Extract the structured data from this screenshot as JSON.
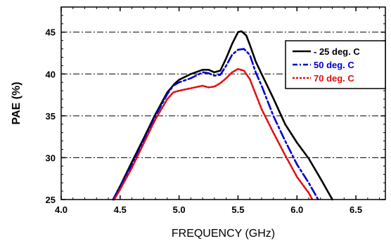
{
  "chart_data": {
    "type": "line",
    "title": "",
    "xlabel": "FREQUENCY (GHz)",
    "ylabel": "PAE (%)",
    "xlim": [
      4.0,
      6.75
    ],
    "ylim": [
      25,
      48
    ],
    "x_ticks": [
      "4.0",
      "4.5",
      "5.0",
      "5.5",
      "6.0",
      "6.5"
    ],
    "y_ticks": [
      "25",
      "30",
      "35",
      "40",
      "45"
    ],
    "grid": "horizontal dash-dot at y ticks",
    "legend_position": "top-right",
    "series": [
      {
        "name": "- 25 deg. C",
        "color": "#000000",
        "dash": "solid",
        "points": [
          [
            4.44,
            25.0
          ],
          [
            4.5,
            26.6
          ],
          [
            4.6,
            29.5
          ],
          [
            4.7,
            32.3
          ],
          [
            4.8,
            35.2
          ],
          [
            4.9,
            37.8
          ],
          [
            4.96,
            38.8
          ],
          [
            5.0,
            39.3
          ],
          [
            5.1,
            40.0
          ],
          [
            5.2,
            40.5
          ],
          [
            5.25,
            40.5
          ],
          [
            5.3,
            40.2
          ],
          [
            5.35,
            40.4
          ],
          [
            5.4,
            41.9
          ],
          [
            5.45,
            43.6
          ],
          [
            5.5,
            45.0
          ],
          [
            5.53,
            45.1
          ],
          [
            5.57,
            44.6
          ],
          [
            5.6,
            43.5
          ],
          [
            5.65,
            41.5
          ],
          [
            5.7,
            40.0
          ],
          [
            5.8,
            37.1
          ],
          [
            5.9,
            34.0
          ],
          [
            6.0,
            31.8
          ],
          [
            6.1,
            29.9
          ],
          [
            6.2,
            27.5
          ],
          [
            6.3,
            25.0
          ]
        ]
      },
      {
        "name": "50 deg. C",
        "color": "#0000cc",
        "dash": "dash-dot",
        "points": [
          [
            4.44,
            25.0
          ],
          [
            4.5,
            26.5
          ],
          [
            4.6,
            29.2
          ],
          [
            4.7,
            32.0
          ],
          [
            4.8,
            35.0
          ],
          [
            4.9,
            37.6
          ],
          [
            4.95,
            38.6
          ],
          [
            5.0,
            39.0
          ],
          [
            5.1,
            39.5
          ],
          [
            5.2,
            40.2
          ],
          [
            5.25,
            40.1
          ],
          [
            5.3,
            39.8
          ],
          [
            5.35,
            39.9
          ],
          [
            5.4,
            41.0
          ],
          [
            5.45,
            42.3
          ],
          [
            5.5,
            42.9
          ],
          [
            5.55,
            43.0
          ],
          [
            5.6,
            42.3
          ],
          [
            5.65,
            40.2
          ],
          [
            5.7,
            38.6
          ],
          [
            5.8,
            35.0
          ],
          [
            5.9,
            32.0
          ],
          [
            6.0,
            29.2
          ],
          [
            6.1,
            27.0
          ],
          [
            6.18,
            25.0
          ]
        ]
      },
      {
        "name": "70 deg. C",
        "color": "#e01010",
        "dash": "dotted",
        "points": [
          [
            4.45,
            25.0
          ],
          [
            4.5,
            26.2
          ],
          [
            4.6,
            28.8
          ],
          [
            4.7,
            31.7
          ],
          [
            4.8,
            34.6
          ],
          [
            4.9,
            37.0
          ],
          [
            4.95,
            37.8
          ],
          [
            5.0,
            38.0
          ],
          [
            5.1,
            38.3
          ],
          [
            5.2,
            38.6
          ],
          [
            5.25,
            38.4
          ],
          [
            5.3,
            38.5
          ],
          [
            5.35,
            38.9
          ],
          [
            5.4,
            39.5
          ],
          [
            5.45,
            40.2
          ],
          [
            5.5,
            40.6
          ],
          [
            5.55,
            40.4
          ],
          [
            5.6,
            39.4
          ],
          [
            5.65,
            37.6
          ],
          [
            5.7,
            35.8
          ],
          [
            5.8,
            33.0
          ],
          [
            5.9,
            30.3
          ],
          [
            6.0,
            27.7
          ],
          [
            6.1,
            25.8
          ],
          [
            6.13,
            25.0
          ]
        ]
      }
    ]
  }
}
